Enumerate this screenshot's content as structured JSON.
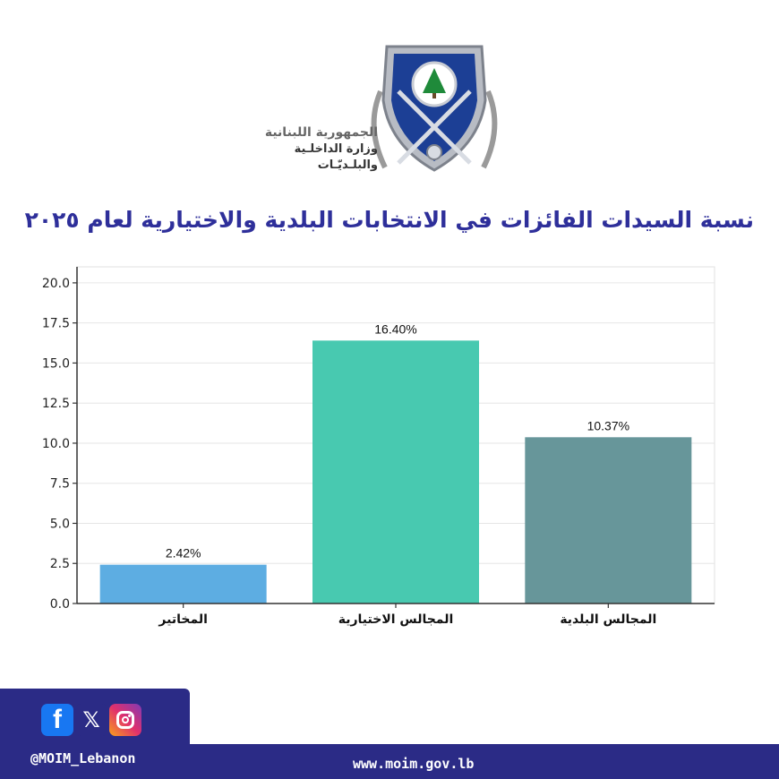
{
  "header": {
    "org_line1": "الجمهورية اللبنانية",
    "org_line2": "وزارة الداخلـية",
    "org_line3": "والبلـديّـات",
    "logo": "ministry-shield-cedar-logo"
  },
  "chart_data": {
    "type": "bar",
    "title": "نسبة السيدات الفائزات في الانتخابات البلدية والاختيارية لعام ٢٠٢٥",
    "categories": [
      "المخاتير",
      "المجالس الاختيارية",
      "المجالس البلدية"
    ],
    "values": [
      2.42,
      16.4,
      10.37
    ],
    "data_labels": [
      "2.42%",
      "16.40%",
      "10.37%"
    ],
    "colors": [
      "#5dade2",
      "#48c9b0",
      "#67969a"
    ],
    "ylim": [
      0,
      21
    ],
    "yticks": [
      "0.0",
      "2.5",
      "5.0",
      "7.5",
      "10.0",
      "12.5",
      "15.0",
      "17.5",
      "20.0"
    ],
    "grid": true,
    "xlabel": "",
    "ylabel": ""
  },
  "footer": {
    "handle": "@MOIM_Lebanon",
    "website": "www.moim.gov.lb",
    "social_icons": [
      "facebook-icon",
      "x-icon",
      "instagram-icon"
    ],
    "brand_color": "#2b2b86"
  }
}
